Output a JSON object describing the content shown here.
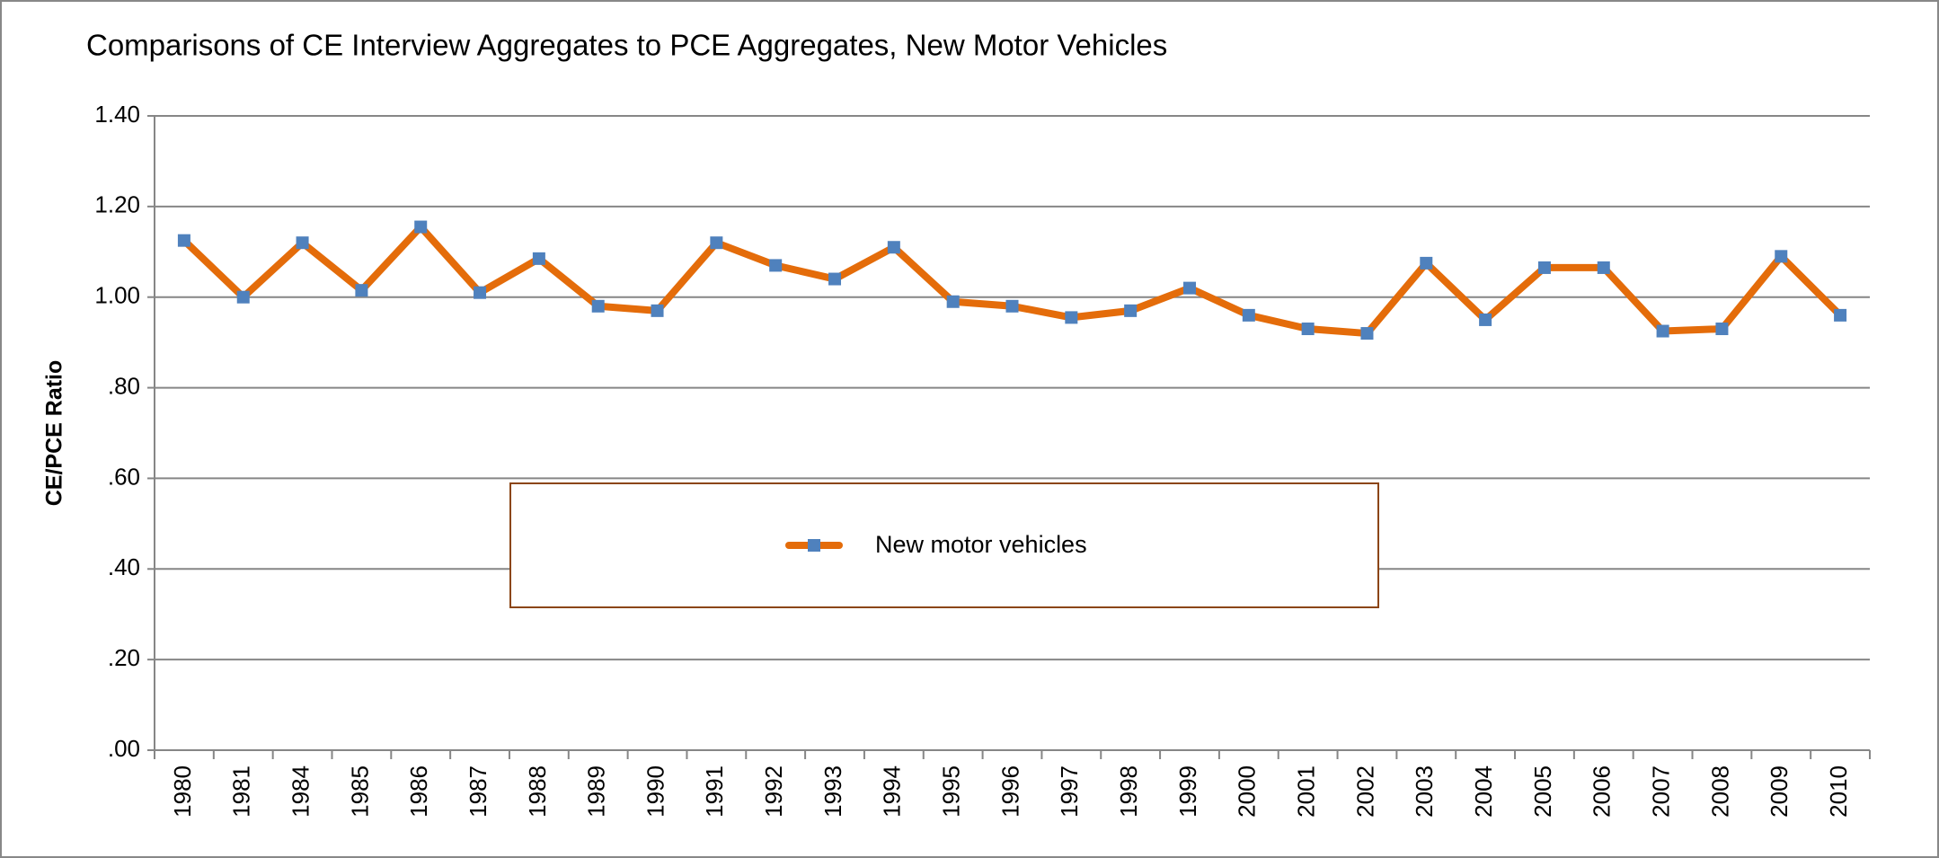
{
  "chart_data": {
    "type": "line",
    "title": "Comparisons of CE Interview Aggregates to PCE Aggregates, New Motor Vehicles",
    "y_label": "CE/PCE Ratio",
    "categories": [
      "1980",
      "1981",
      "1984",
      "1985",
      "1986",
      "1987",
      "1988",
      "1989",
      "1990",
      "1991",
      "1992",
      "1993",
      "1994",
      "1995",
      "1996",
      "1997",
      "1998",
      "1999",
      "2000",
      "2001",
      "2002",
      "2003",
      "2004",
      "2005",
      "2006",
      "2007",
      "2008",
      "2009",
      "2010"
    ],
    "series": [
      {
        "name": "New motor vehicles",
        "color": "#e46c0a",
        "marker_color": "#4f81bd",
        "values": [
          1.125,
          1.0,
          1.12,
          1.015,
          1.155,
          1.01,
          1.085,
          0.98,
          0.97,
          1.12,
          1.07,
          1.04,
          1.11,
          0.99,
          0.98,
          0.955,
          0.97,
          1.02,
          0.96,
          0.93,
          0.92,
          1.075,
          0.95,
          1.065,
          1.065,
          0.925,
          0.93,
          1.09,
          0.96
        ]
      }
    ],
    "ylim": [
      0,
      1.4
    ],
    "yticks": [
      {
        "value": 0,
        "label": ".00"
      },
      {
        "value": 0.2,
        "label": ".20"
      },
      {
        "value": 0.4,
        "label": ".40"
      },
      {
        "value": 0.6,
        "label": ".60"
      },
      {
        "value": 0.8,
        "label": ".80"
      },
      {
        "value": 1.0,
        "label": "1.00"
      },
      {
        "value": 1.2,
        "label": "1.20"
      },
      {
        "value": 1.4,
        "label": "1.40"
      }
    ],
    "grid": true,
    "legend": "center"
  }
}
